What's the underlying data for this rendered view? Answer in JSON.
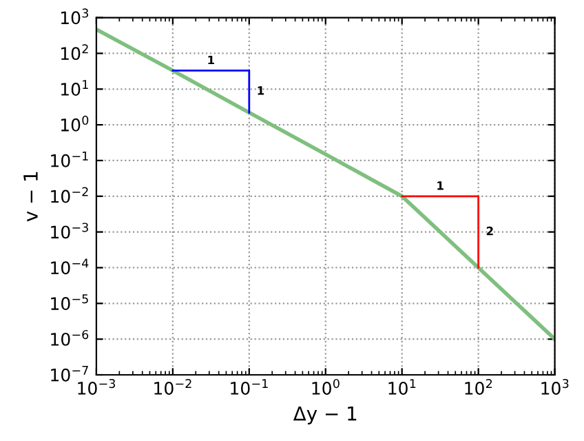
{
  "chart_data": {
    "type": "line",
    "xlabel": "Δy − 1",
    "ylabel": "v − 1",
    "log": "xy",
    "grid": true,
    "line_style": "solid",
    "marker": "none",
    "xlim": [
      0.001,
      1000
    ],
    "ylim": [
      1e-07,
      1000
    ],
    "xticks": [
      {
        "value": 0.001,
        "label": "10$^{−3}$"
      },
      {
        "value": 0.01,
        "label": "10$^{−2}$"
      },
      {
        "value": 0.1,
        "label": "10$^{−1}$"
      },
      {
        "value": 1,
        "label": "10$^{0}$"
      },
      {
        "value": 10,
        "label": "10$^{1}$"
      },
      {
        "value": 100,
        "label": "10$^{2}$"
      },
      {
        "value": 1000,
        "label": "10$^{3}$"
      }
    ],
    "yticks": [
      {
        "value": 1e-07,
        "label": "10$^{−7}$"
      },
      {
        "value": 1e-06,
        "label": "10$^{−6}$"
      },
      {
        "value": 1e-05,
        "label": "10$^{−5}$"
      },
      {
        "value": 0.0001,
        "label": "10$^{−4}$"
      },
      {
        "value": 0.001,
        "label": "10$^{−3}$"
      },
      {
        "value": 0.01,
        "label": "10$^{−2}$"
      },
      {
        "value": 0.1,
        "label": "10$^{−1}$"
      },
      {
        "value": 1,
        "label": "10$^{0}$"
      },
      {
        "value": 10,
        "label": "10$^{1}$"
      },
      {
        "value": 100,
        "label": "10$^{2}$"
      },
      {
        "value": 1000,
        "label": "10$^{3}$"
      }
    ],
    "series": [
      {
        "color": "#7fbf7f",
        "x": [
          0.001,
          0.01,
          0.1,
          1,
          10,
          100,
          1000
        ],
        "values": [
          470,
          33,
          2.2,
          0.15,
          0.01,
          0.0001,
          1e-06
        ]
      },
      {
        "color": "#0000ff",
        "x": [
          0.01,
          0.1,
          0.1
        ],
        "values": [
          33,
          33,
          2.2
        ]
      },
      {
        "color": "#ff0000",
        "x": [
          10,
          100,
          100
        ],
        "values": [
          0.01,
          0.01,
          0.0001
        ]
      }
    ],
    "annotations": [
      "1",
      "1",
      "1",
      "2"
    ]
  }
}
